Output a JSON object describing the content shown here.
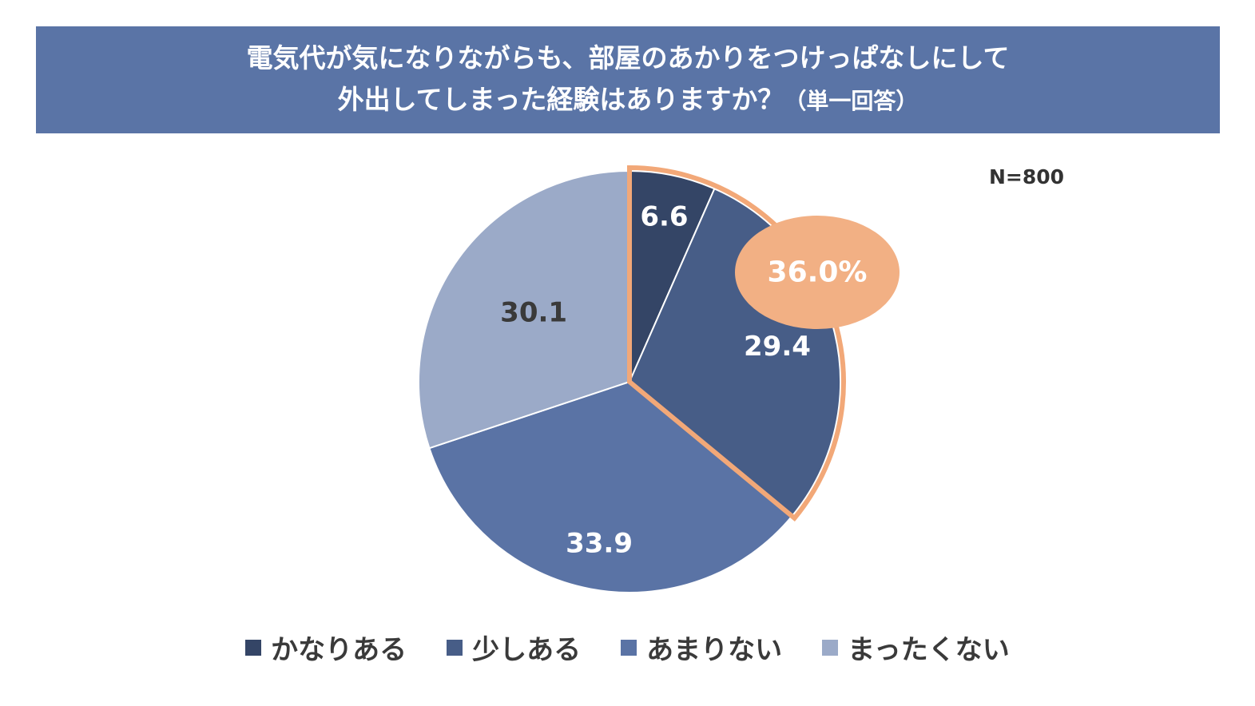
{
  "title": {
    "line1": "電気代が気になりながらも、部屋のあかりをつけっぱなしにして",
    "line2": "外出してしまった経験はありますか？",
    "note": "（単一回答）"
  },
  "sample_size": "N=800",
  "highlight": {
    "label": "36.0%",
    "value": 36.0,
    "colors": {
      "fill": "#f2b084",
      "outline": "#f2a878"
    }
  },
  "chart_data": {
    "type": "pie",
    "start": "12 o'clock, clockwise",
    "categories": [
      "かなりある",
      "少しある",
      "あまりない",
      "まったくない"
    ],
    "values": [
      6.6,
      29.4,
      33.9,
      30.1
    ],
    "labels": [
      "6.6",
      "29.4",
      "33.9",
      "30.1"
    ],
    "colors": [
      "#344566",
      "#475d87",
      "#5a73a5",
      "#9baac8"
    ],
    "label_colors": [
      "#ffffff",
      "#ffffff",
      "#ffffff",
      "#3a3a3a"
    ],
    "legend_position": "bottom"
  }
}
